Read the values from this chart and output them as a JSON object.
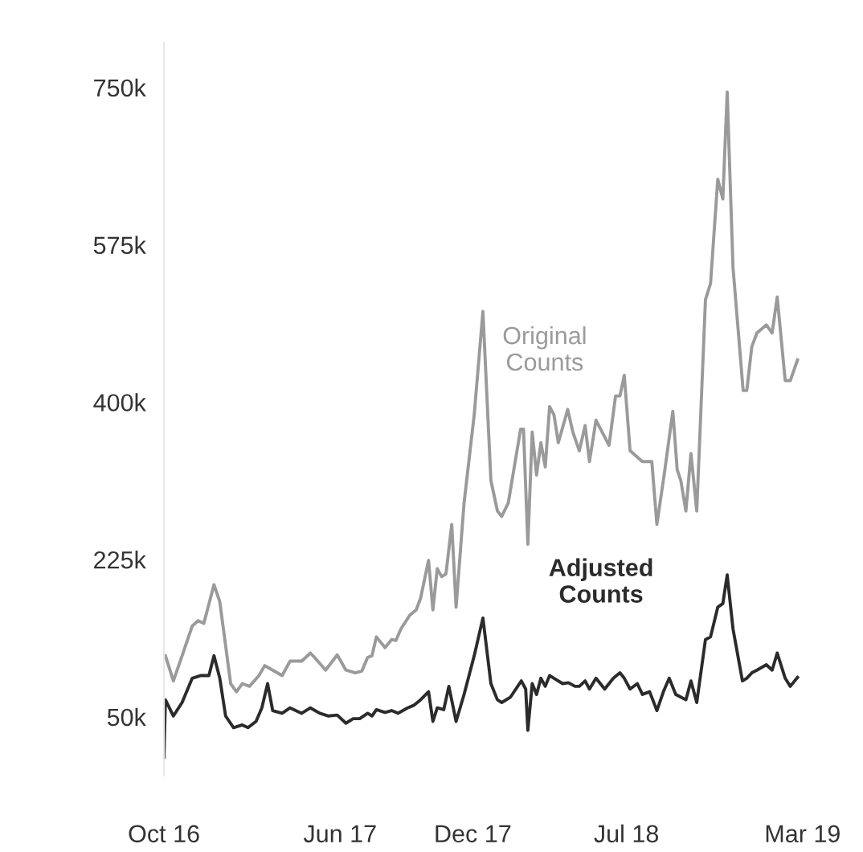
{
  "chart_data": {
    "type": "line",
    "xlim": [
      "2016-10",
      "2019-03"
    ],
    "xticks": [
      {
        "value": "2016-10",
        "label": "Oct 16"
      },
      {
        "value": "2017-06",
        "label": "Jun 17"
      },
      {
        "value": "2017-12",
        "label": "Dec 17"
      },
      {
        "value": "2018-07",
        "label": "Jul 18"
      },
      {
        "value": "2019-03",
        "label": "Mar 19"
      }
    ],
    "ylim": [
      -15000,
      800000
    ],
    "yticks": [
      {
        "value": 50000,
        "label": "50k"
      },
      {
        "value": 225000,
        "label": "225k"
      },
      {
        "value": 400000,
        "label": "400k"
      },
      {
        "value": 575000,
        "label": "575k"
      },
      {
        "value": 750000,
        "label": "750k"
      }
    ],
    "grid": false,
    "legend": false,
    "marker": "none",
    "line_style": "solid",
    "series": [
      {
        "name": "Original Counts",
        "color": "#9a9a9a",
        "x": [
          "2016-10-03",
          "2016-10-14",
          "2016-10-26",
          "2016-11-09",
          "2016-11-17",
          "2016-11-25",
          "2016-12-09",
          "2016-12-17",
          "2017-01-01",
          "2017-01-09",
          "2017-01-17",
          "2017-01-27",
          "2017-02-09",
          "2017-02-17",
          "2017-02-28",
          "2017-03-13",
          "2017-03-24",
          "2017-04-09",
          "2017-04-21",
          "2017-04-28",
          "2017-05-12",
          "2017-05-28",
          "2017-06-09",
          "2017-06-22",
          "2017-07-01",
          "2017-07-09",
          "2017-07-15",
          "2017-07-21",
          "2017-08-02",
          "2017-08-11",
          "2017-08-17",
          "2017-08-24",
          "2017-09-05",
          "2017-09-14",
          "2017-09-20",
          "2017-10-01",
          "2017-10-07",
          "2017-10-13",
          "2017-10-19",
          "2017-10-25",
          "2017-11-02",
          "2017-11-08",
          "2017-11-19",
          "2017-12-03",
          "2017-12-15",
          "2017-12-26",
          "2018-01-04",
          "2018-01-10",
          "2018-01-19",
          "2018-02-05",
          "2018-02-09",
          "2018-02-15",
          "2018-02-21",
          "2018-02-27",
          "2018-03-05",
          "2018-03-11",
          "2018-03-17",
          "2018-03-23",
          "2018-03-29",
          "2018-04-11",
          "2018-04-18",
          "2018-04-27",
          "2018-05-05",
          "2018-05-11",
          "2018-05-20",
          "2018-06-07",
          "2018-06-16",
          "2018-06-22",
          "2018-06-28",
          "2018-07-06",
          "2018-07-23",
          "2018-08-05",
          "2018-08-12",
          "2018-08-22",
          "2018-09-03",
          "2018-09-09",
          "2018-09-14",
          "2018-09-21",
          "2018-09-28",
          "2018-10-06",
          "2018-10-18",
          "2018-10-25",
          "2018-11-04",
          "2018-11-11",
          "2018-11-17",
          "2018-11-25",
          "2018-12-09",
          "2018-12-14",
          "2018-12-21",
          "2018-12-28",
          "2019-01-10",
          "2019-01-18",
          "2019-01-25",
          "2019-02-05",
          "2019-02-12",
          "2019-02-22"
        ],
        "values": [
          118000,
          90000,
          118000,
          151000,
          157000,
          154000,
          197000,
          178000,
          87000,
          78000,
          87000,
          84000,
          96000,
          107000,
          102000,
          96000,
          112000,
          112000,
          121000,
          115000,
          102000,
          119000,
          102000,
          99000,
          101000,
          116000,
          118000,
          139000,
          127000,
          136000,
          135000,
          148000,
          163000,
          169000,
          182000,
          224000,
          169000,
          215000,
          206000,
          209000,
          264000,
          172000,
          288000,
          386000,
          501000,
          313000,
          279000,
          273000,
          288000,
          370000,
          370000,
          242000,
          367000,
          319000,
          355000,
          328000,
          395000,
          386000,
          355000,
          392000,
          367000,
          346000,
          374000,
          334000,
          380000,
          352000,
          407000,
          407000,
          430000,
          346000,
          334000,
          334000,
          264000,
          319000,
          390000,
          325000,
          313000,
          279000,
          343000,
          279000,
          514000,
          532000,
          648000,
          626000,
          745000,
          550000,
          413000,
          413000,
          462000,
          477000,
          486000,
          477000,
          517000,
          424000,
          424000,
          447000
        ]
      },
      {
        "name": "Adjusted Counts",
        "color": "#2b2b2b",
        "x": [
          "2016-10-01",
          "2016-10-03",
          "2016-10-14",
          "2016-10-26",
          "2016-11-09",
          "2016-11-21",
          "2016-12-02",
          "2016-12-09",
          "2016-12-17",
          "2016-12-25",
          "2017-01-05",
          "2017-01-17",
          "2017-01-25",
          "2017-02-05",
          "2017-02-13",
          "2017-02-21",
          "2017-02-28",
          "2017-03-13",
          "2017-03-24",
          "2017-04-09",
          "2017-04-21",
          "2017-05-04",
          "2017-05-16",
          "2017-05-28",
          "2017-06-09",
          "2017-06-19",
          "2017-06-28",
          "2017-07-09",
          "2017-07-15",
          "2017-07-21",
          "2017-08-02",
          "2017-08-11",
          "2017-08-20",
          "2017-09-02",
          "2017-09-11",
          "2017-09-20",
          "2017-10-01",
          "2017-10-07",
          "2017-10-13",
          "2017-10-22",
          "2017-10-29",
          "2017-11-08",
          "2017-11-19",
          "2017-12-03",
          "2017-12-15",
          "2017-12-26",
          "2018-01-04",
          "2018-01-10",
          "2018-01-22",
          "2018-02-06",
          "2018-02-12",
          "2018-02-15",
          "2018-02-21",
          "2018-02-27",
          "2018-03-05",
          "2018-03-11",
          "2018-03-17",
          "2018-03-23",
          "2018-04-04",
          "2018-04-12",
          "2018-04-21",
          "2018-04-27",
          "2018-05-05",
          "2018-05-11",
          "2018-05-20",
          "2018-06-01",
          "2018-06-13",
          "2018-06-22",
          "2018-06-28",
          "2018-07-06",
          "2018-07-16",
          "2018-07-23",
          "2018-08-02",
          "2018-08-12",
          "2018-08-21",
          "2018-08-29",
          "2018-09-07",
          "2018-09-14",
          "2018-09-21",
          "2018-09-28",
          "2018-10-06",
          "2018-10-18",
          "2018-10-25",
          "2018-11-04",
          "2018-11-11",
          "2018-11-17",
          "2018-11-25",
          "2018-12-08",
          "2018-12-14",
          "2018-12-21",
          "2018-12-28",
          "2019-01-10",
          "2019-01-18",
          "2019-01-25",
          "2019-02-05",
          "2019-02-12",
          "2019-02-22"
        ],
        "values": [
          5000,
          69000,
          51000,
          66000,
          93000,
          96000,
          96000,
          118000,
          93000,
          51000,
          38000,
          41000,
          38000,
          45000,
          60000,
          87000,
          57000,
          54000,
          60000,
          54000,
          60000,
          54000,
          51000,
          52000,
          43000,
          48000,
          48000,
          54000,
          51000,
          58000,
          55000,
          57000,
          54000,
          60000,
          63000,
          69000,
          78000,
          45000,
          60000,
          58000,
          84000,
          45000,
          75000,
          118000,
          160000,
          87000,
          69000,
          66000,
          72000,
          90000,
          81000,
          35000,
          87000,
          75000,
          93000,
          84000,
          96000,
          93000,
          87000,
          88000,
          84000,
          84000,
          90000,
          81000,
          93000,
          81000,
          93000,
          99000,
          93000,
          81000,
          87000,
          75000,
          78000,
          57000,
          78000,
          93000,
          75000,
          72000,
          69000,
          90000,
          66000,
          136000,
          139000,
          172000,
          176000,
          208000,
          148000,
          90000,
          93000,
          99000,
          102000,
          108000,
          102000,
          121000,
          93000,
          84000,
          94000
        ]
      }
    ]
  }
}
